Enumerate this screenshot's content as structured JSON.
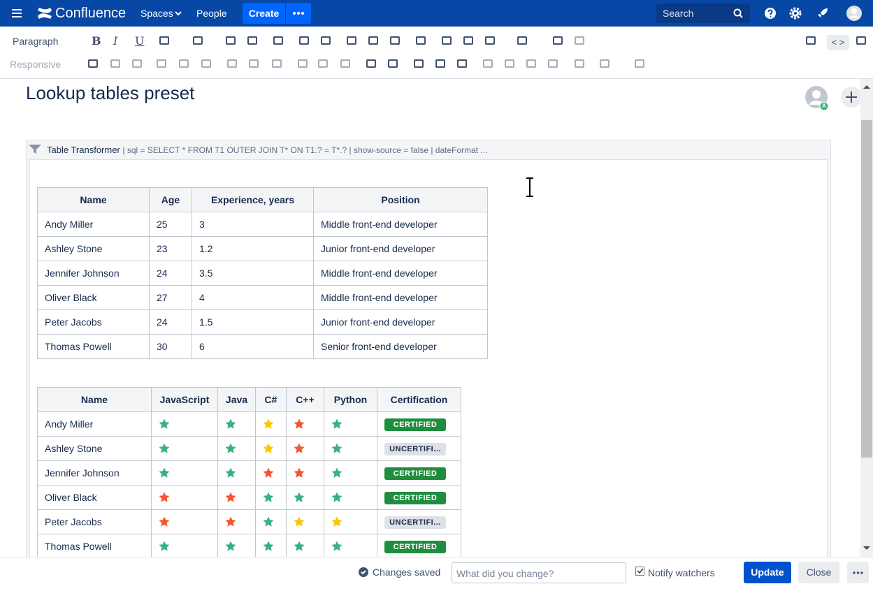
{
  "nav": {
    "brand": "Confluence",
    "spaces": "Spaces",
    "people": "People",
    "create": "Create",
    "search": "Search"
  },
  "toolbar": {
    "paragraph": "Paragraph",
    "format": [
      "B",
      "I",
      "U"
    ],
    "responsive": "Responsive",
    "source": "< >"
  },
  "page": {
    "title": "Lookup tables preset",
    "avatar_badge": "A",
    "macro": {
      "name": "Table Transformer",
      "params": "| sql = SELECT * FROM T1 OUTER JOIN T* ON T1.? = T*.? | show-source = false | dateFormat ..."
    }
  },
  "table1": {
    "headers": [
      "Name",
      "Age",
      "Experience, years",
      "Position"
    ],
    "rows": [
      [
        "Andy Miller",
        "25",
        "3",
        "Middle front-end developer"
      ],
      [
        "Ashley Stone",
        "23",
        "1.2",
        "Junior front-end developer"
      ],
      [
        "Jennifer Johnson",
        "24",
        "3.5",
        "Middle front-end developer"
      ],
      [
        "Oliver Black",
        "27",
        "4",
        "Middle front-end developer"
      ],
      [
        "Peter Jacobs",
        "24",
        "1.5",
        "Junior front-end developer"
      ],
      [
        "Thomas Powell",
        "30",
        "6",
        "Senior front-end developer"
      ]
    ]
  },
  "table2": {
    "headers": [
      "Name",
      "JavaScript",
      "Java",
      "C#",
      "C++",
      "Python",
      "Certification"
    ],
    "rows": [
      {
        "name": "Andy Miller",
        "stars": [
          "#36b37e",
          "#36b37e",
          "#ffc400",
          "#f4562f",
          "#36b37e"
        ],
        "certification": "CERTIFIED",
        "status_color": "#1e8e3e"
      },
      {
        "name": "Ashley Stone",
        "stars": [
          "#36b37e",
          "#36b37e",
          "#ffc400",
          "#f4562f",
          "#36b37e"
        ],
        "certification": "UNCERTIFI...",
        "status_color": "#dfe1e6"
      },
      {
        "name": "Jennifer Johnson",
        "stars": [
          "#36b37e",
          "#36b37e",
          "#f4562f",
          "#f4562f",
          "#36b37e"
        ],
        "certification": "CERTIFIED",
        "status_color": "#1e8e3e"
      },
      {
        "name": "Oliver Black",
        "stars": [
          "#f4562f",
          "#f4562f",
          "#36b37e",
          "#36b37e",
          "#36b37e"
        ],
        "certification": "CERTIFIED",
        "status_color": "#1e8e3e"
      },
      {
        "name": "Peter Jacobs",
        "stars": [
          "#f4562f",
          "#f4562f",
          "#36b37e",
          "#ffc400",
          "#ffc400"
        ],
        "certification": "UNCERTIFI...",
        "status_color": "#dfe1e6"
      },
      {
        "name": "Thomas Powell",
        "stars": [
          "#36b37e",
          "#36b37e",
          "#36b37e",
          "#36b37e",
          "#36b37e"
        ],
        "certification": "CERTIFIED",
        "status_color": "#1e8e3e"
      }
    ]
  },
  "footer": {
    "saved": "Changes saved",
    "placeholder": "What did you change?",
    "notify": "Notify watchers",
    "update": "Update",
    "close": "Close"
  }
}
